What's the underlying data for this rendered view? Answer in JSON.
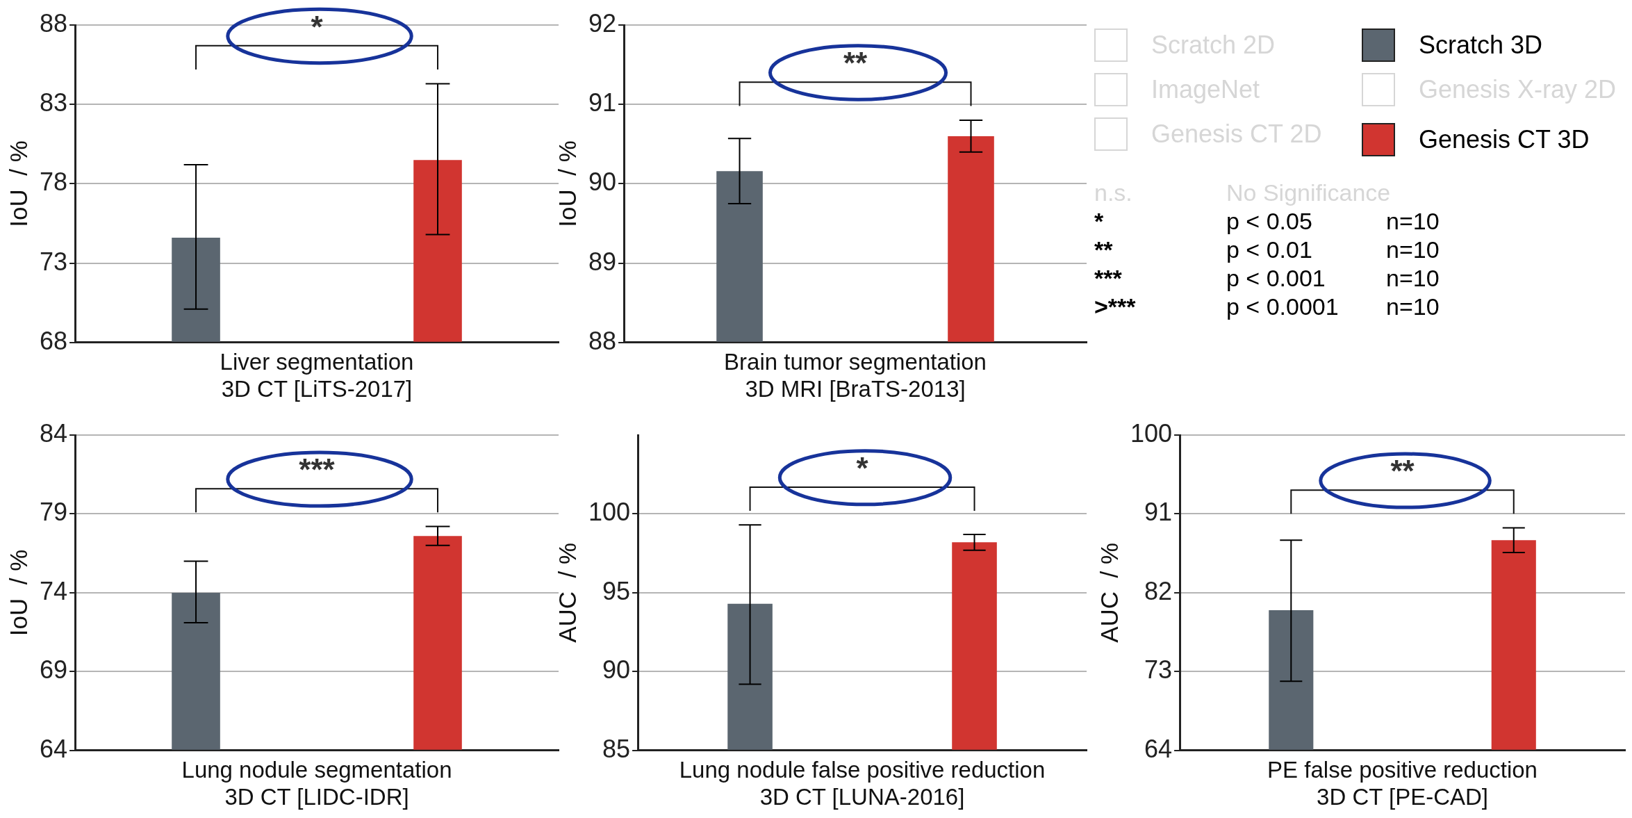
{
  "chart_data": [
    {
      "type": "bar",
      "xlabel": "Liver segmentation\n3D CT [LiTS-2017]",
      "ylabel": "IoU  / %",
      "categories": [
        null,
        null
      ],
      "series": [
        {
          "color": "#5b6670",
          "values": [
            74.6,
            null
          ],
          "errors": [
            [
              70.1,
              79.2
            ],
            null
          ]
        },
        {
          "color": "#d13530",
          "values": [
            null,
            79.5
          ],
          "errors": [
            null,
            [
              74.8,
              84.3
            ]
          ]
        }
      ],
      "ylim": [
        68,
        88
      ],
      "yticks": [
        68,
        73,
        78,
        83,
        88
      ],
      "grid": "y",
      "annotations": [
        "*"
      ]
    },
    {
      "type": "bar",
      "xlabel": "Brain tumor segmentation\n3D MRI [BraTS-2013]",
      "ylabel": "IoU  / %",
      "categories": [
        null,
        null
      ],
      "series": [
        {
          "name": "Scratch 3D",
          "color": "#5b6670",
          "values": [
            90.16,
            null
          ],
          "errors": [
            [
              89.75,
              90.57
            ],
            null
          ]
        },
        {
          "name": "Genesis CT 3D",
          "color": "#d13530",
          "values": [
            null,
            90.6
          ],
          "errors": [
            null,
            [
              90.4,
              90.8
            ]
          ]
        }
      ],
      "ylim": [
        88,
        92
      ],
      "yticks": [
        88,
        89,
        90,
        91,
        92
      ],
      "grid": "y",
      "legend": "right",
      "annotations": [
        "**"
      ]
    },
    {
      "type": "bar",
      "xlabel": "Lung nodule segmentation\n3D CT [LIDC-IDR]",
      "ylabel": "IoU  / %",
      "categories": [
        null,
        null
      ],
      "series": [
        {
          "color": "#5b6670",
          "values": [
            74.0,
            null
          ],
          "errors": [
            [
              72.1,
              76.0
            ],
            null
          ]
        },
        {
          "color": "#d13530",
          "values": [
            null,
            77.6
          ],
          "errors": [
            null,
            [
              77.0,
              78.2
            ]
          ]
        }
      ],
      "ylim": [
        64,
        84
      ],
      "yticks": [
        64,
        69,
        74,
        79,
        84
      ],
      "grid": "y",
      "annotations": [
        "***"
      ]
    },
    {
      "type": "bar",
      "xlabel": "Lung nodule false positive reduction\n3D CT [LUNA-2016]",
      "ylabel": "AUC  / %",
      "categories": [
        null,
        null
      ],
      "series": [
        {
          "color": "#5b6670",
          "values": [
            94.3,
            null
          ],
          "errors": [
            [
              89.2,
              99.3
            ],
            null
          ]
        },
        {
          "color": "#d13530",
          "values": [
            null,
            98.2
          ],
          "errors": [
            null,
            [
              97.7,
              98.7
            ]
          ]
        }
      ],
      "ylim": [
        85,
        105
      ],
      "yticks": [
        85,
        90,
        95,
        100
      ],
      "grid": "y",
      "annotations": [
        "*"
      ]
    },
    {
      "type": "bar",
      "xlabel": "PE false positive reduction\n3D CT [PE-CAD]",
      "ylabel": "AUC  / %",
      "categories": [
        null,
        null
      ],
      "series": [
        {
          "color": "#5b6670",
          "values": [
            80.0,
            null
          ],
          "errors": [
            [
              71.9,
              88.0
            ],
            null
          ]
        },
        {
          "color": "#d13530",
          "values": [
            null,
            88.0
          ],
          "errors": [
            null,
            [
              86.6,
              89.4
            ]
          ]
        }
      ],
      "ylim": [
        64,
        100
      ],
      "yticks": [
        64,
        73,
        82,
        91,
        100
      ],
      "grid": "y",
      "annotations": [
        "**"
      ]
    },
    {
      "type": "other",
      "annotations": [
        "Scratch 2D",
        "ImageNet",
        "Genesis X-ray 2D",
        "Genesis CT 2D",
        "n.s.",
        "No Significance",
        "*",
        "p < 0.05",
        "n=10",
        "**",
        "p < 0.01",
        "n=10",
        "***",
        "p < 0.001",
        "n=10",
        ">***",
        "p < 0.0001",
        "n=10"
      ]
    }
  ]
}
